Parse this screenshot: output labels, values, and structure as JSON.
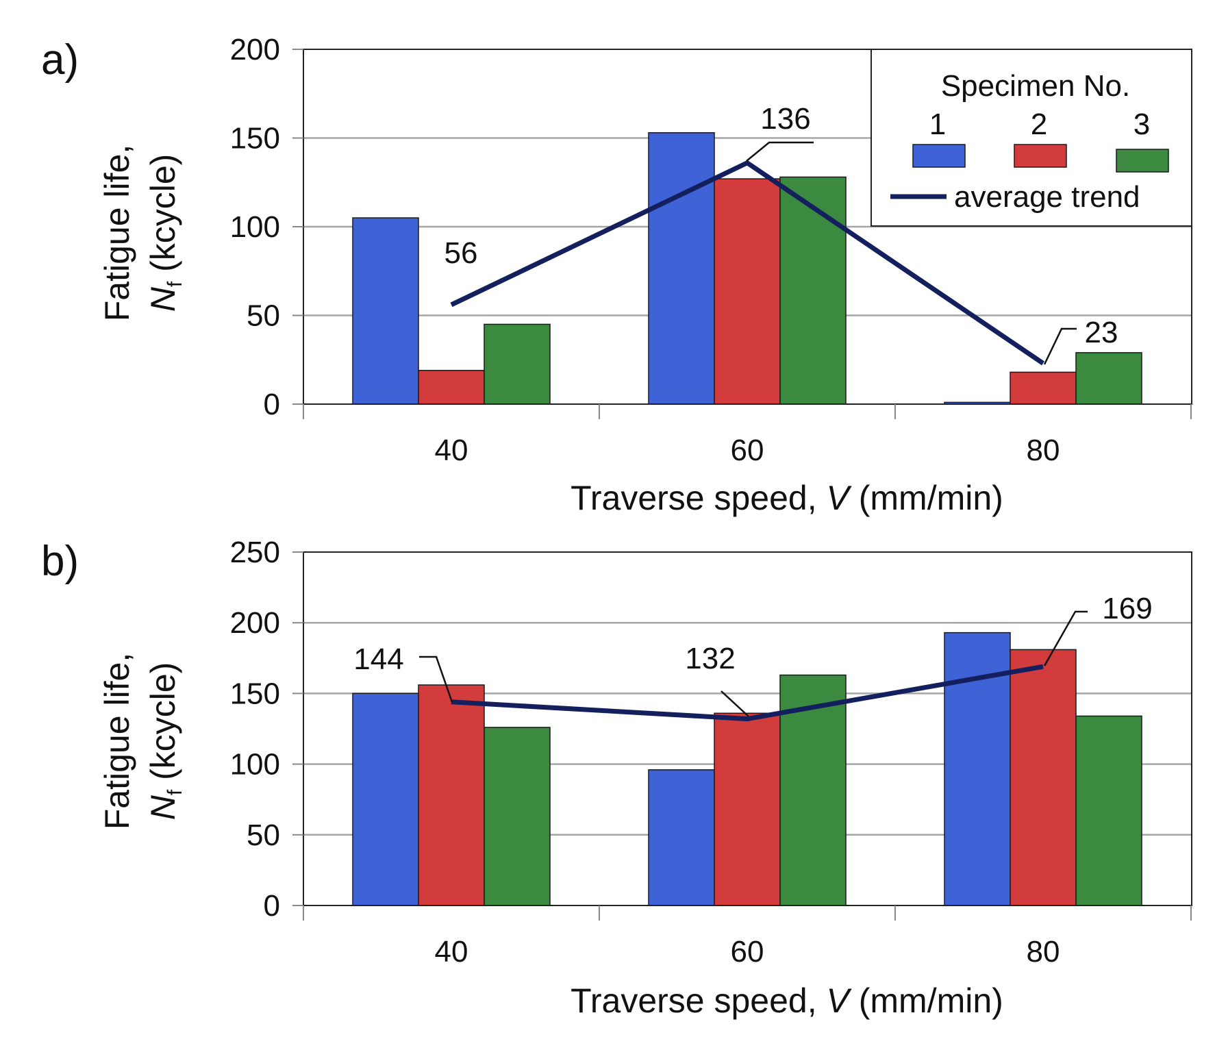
{
  "colors": {
    "series_1": "#3f62d6",
    "series_2": "#d23c3c",
    "series_3": "#3c8a40",
    "trend": "#14205e"
  },
  "legend": {
    "title": "Specimen No.",
    "items": [
      "1",
      "2",
      "3"
    ],
    "trend_label": "average trend"
  },
  "chart_data": [
    {
      "panel": "a)",
      "type": "bar",
      "categories": [
        "40",
        "60",
        "80"
      ],
      "series": [
        {
          "name": "1",
          "values": [
            105,
            153,
            1
          ]
        },
        {
          "name": "2",
          "values": [
            19,
            127,
            18
          ]
        },
        {
          "name": "3",
          "values": [
            45,
            128,
            29
          ]
        }
      ],
      "trend": {
        "name": "average trend",
        "values": [
          56,
          136,
          23
        ],
        "labels": [
          "56",
          "136",
          "23"
        ]
      },
      "ylim": [
        0,
        200
      ],
      "yticks": [
        "0",
        "50",
        "100",
        "150",
        "200"
      ],
      "ylabel_line1": "Fatigue life,",
      "ylabel_symbol": "N",
      "ylabel_subscript": "f",
      "ylabel_unit": " (kcycle)",
      "xlabel_prefix": "Traverse speed, ",
      "xlabel_symbol": "V",
      "xlabel_suffix": " (mm/min)",
      "legend_position": "top-right"
    },
    {
      "panel": "b)",
      "type": "bar",
      "categories": [
        "40",
        "60",
        "80"
      ],
      "series": [
        {
          "name": "1",
          "values": [
            150,
            96,
            193
          ]
        },
        {
          "name": "2",
          "values": [
            156,
            136,
            181
          ]
        },
        {
          "name": "3",
          "values": [
            126,
            163,
            134
          ]
        }
      ],
      "trend": {
        "name": "average trend",
        "values": [
          144,
          132,
          169
        ],
        "labels": [
          "144",
          "132",
          "169"
        ]
      },
      "ylim": [
        0,
        250
      ],
      "yticks": [
        "0",
        "50",
        "100",
        "150",
        "200",
        "250"
      ],
      "ylabel_line1": "Fatigue life,",
      "ylabel_symbol": "N",
      "ylabel_subscript": "f",
      "ylabel_unit": " (kcycle)",
      "xlabel_prefix": "Traverse speed, ",
      "xlabel_symbol": "V",
      "xlabel_suffix": " (mm/min)",
      "legend_position": "none"
    }
  ]
}
